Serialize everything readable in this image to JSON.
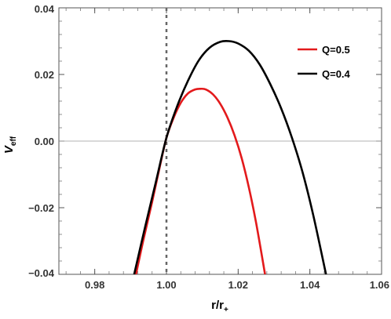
{
  "chart_data": {
    "type": "line",
    "xlabel": {
      "base": "r/r",
      "subscript": "+"
    },
    "ylabel": {
      "base": "V",
      "subscript": "eff"
    },
    "xlim": [
      0.97,
      1.06
    ],
    "ylim": [
      -0.04,
      0.04
    ],
    "xticks": [
      "0.98",
      "1.00",
      "1.02",
      "1.04",
      "1.06"
    ],
    "yticks": [
      "0.04",
      "0.02",
      "0.00",
      "−0.02",
      "−0.04"
    ],
    "reference_lines": {
      "horizontal_y": 0.0,
      "vertical_x": 1.0,
      "vertical_style": "dashed"
    },
    "legend_position": "top-right",
    "series": [
      {
        "name": "Q=0.5",
        "color": "#e31a1c",
        "x": [
          0.9915,
          0.9935,
          0.996,
          0.998,
          1.0,
          1.002,
          1.004,
          1.006,
          1.008,
          1.0095,
          1.011,
          1.013,
          1.015,
          1.017,
          1.019,
          1.021,
          1.023,
          1.025,
          1.0275
        ],
        "y": [
          -0.04,
          -0.03,
          -0.0183,
          -0.0084,
          0.001,
          0.007,
          0.0115,
          0.0143,
          0.0155,
          0.0157,
          0.0155,
          0.014,
          0.0112,
          0.0071,
          0.0017,
          -0.0052,
          -0.014,
          -0.0245,
          -0.04
        ]
      },
      {
        "name": "Q=0.4",
        "color": "#000000",
        "x": [
          0.991,
          0.994,
          0.997,
          1.0,
          1.003,
          1.006,
          1.009,
          1.012,
          1.015,
          1.0175,
          1.02,
          1.023,
          1.026,
          1.029,
          1.032,
          1.035,
          1.038,
          1.041,
          1.0445
        ],
        "y": [
          -0.04,
          -0.026,
          -0.0125,
          0.001,
          0.0105,
          0.0181,
          0.0242,
          0.028,
          0.0298,
          0.03,
          0.0293,
          0.0271,
          0.023,
          0.017,
          0.0098,
          0.001,
          -0.0095,
          -0.0225,
          -0.04
        ]
      }
    ]
  }
}
